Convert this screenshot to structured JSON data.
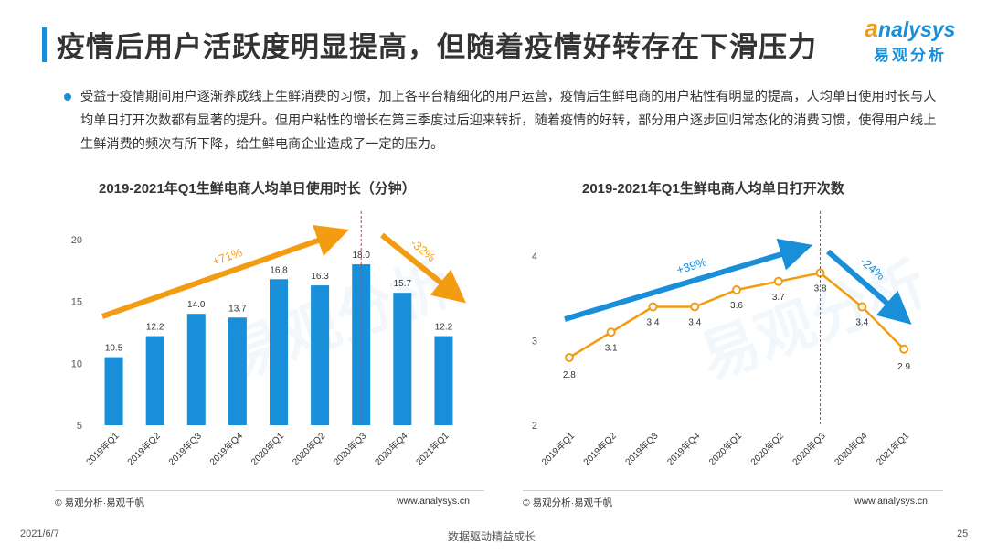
{
  "header": {
    "title": "疫情后用户活跃度明显提高，但随着疫情好转存在下滑压力",
    "logo_word_first": "a",
    "logo_word_rest": "nalysys",
    "logo_cn": "易观分析"
  },
  "summary": "受益于疫情期间用户逐渐养成线上生鲜消费的习惯，加上各平台精细化的用户运营，疫情后生鲜电商的用户粘性有明显的提高，人均单日使用时长与人均单日打开次数都有显著的提升。但用户粘性的增长在第三季度过后迎来转折，随着疫情的好转，部分用户逐步回归常态化的消费习惯，使得用户线上生鲜消费的频次有所下降，给生鲜电商企业造成了一定的压力。",
  "watermark": "易观分析",
  "chart_data": [
    {
      "type": "bar",
      "title": "2019-2021年Q1生鲜电商人均单日使用时长（分钟）",
      "categories": [
        "2019年Q1",
        "2019年Q2",
        "2019年Q3",
        "2019年Q4",
        "2020年Q1",
        "2020年Q2",
        "2020年Q3",
        "2020年Q4",
        "2021年Q1"
      ],
      "values": [
        10.5,
        12.2,
        14.0,
        13.7,
        16.8,
        16.3,
        18.0,
        15.7,
        12.2
      ],
      "value_labels": [
        "10.5",
        "12.2",
        "14.0",
        "13.7",
        "16.8",
        "16.3",
        "18.0",
        "15.7",
        "12.2"
      ],
      "yticks": [
        "5",
        "10",
        "15",
        "20"
      ],
      "ylim": [
        5,
        20
      ],
      "xlabel": "",
      "ylabel": "",
      "color": "#1a8fd9",
      "annotations": {
        "up": "+71%",
        "down": "-32%"
      },
      "arrow_color": "#f39c12"
    },
    {
      "type": "line",
      "title": "2019-2021年Q1生鲜电商人均单日打开次数",
      "categories": [
        "2019年Q1",
        "2019年Q2",
        "2019年Q3",
        "2019年Q4",
        "2020年Q1",
        "2020年Q2",
        "2020年Q3",
        "2020年Q4",
        "2021年Q1"
      ],
      "values": [
        2.8,
        3.1,
        3.4,
        3.4,
        3.6,
        3.7,
        3.8,
        3.4,
        2.9
      ],
      "value_labels": [
        "2.8",
        "3.1",
        "3.4",
        "3.4",
        "3.6",
        "3.7",
        "3.8",
        "3.4",
        "2.9"
      ],
      "yticks": [
        "2",
        "3",
        "4"
      ],
      "ylim": [
        2,
        4
      ],
      "xlabel": "",
      "ylabel": "",
      "color": "#f39c12",
      "annotations": {
        "up": "+39%",
        "down": "-24%"
      },
      "arrow_color": "#1a8fd9"
    }
  ],
  "footer": {
    "source_left": "© 易观分析·易观千帆",
    "source_right": "© 易观分析·易观千帆",
    "site_left": "www.analysys.cn",
    "site_right": "www.analysys.cn",
    "date": "2021/6/7",
    "slogan": "数据驱动精益成长",
    "page": "25"
  }
}
